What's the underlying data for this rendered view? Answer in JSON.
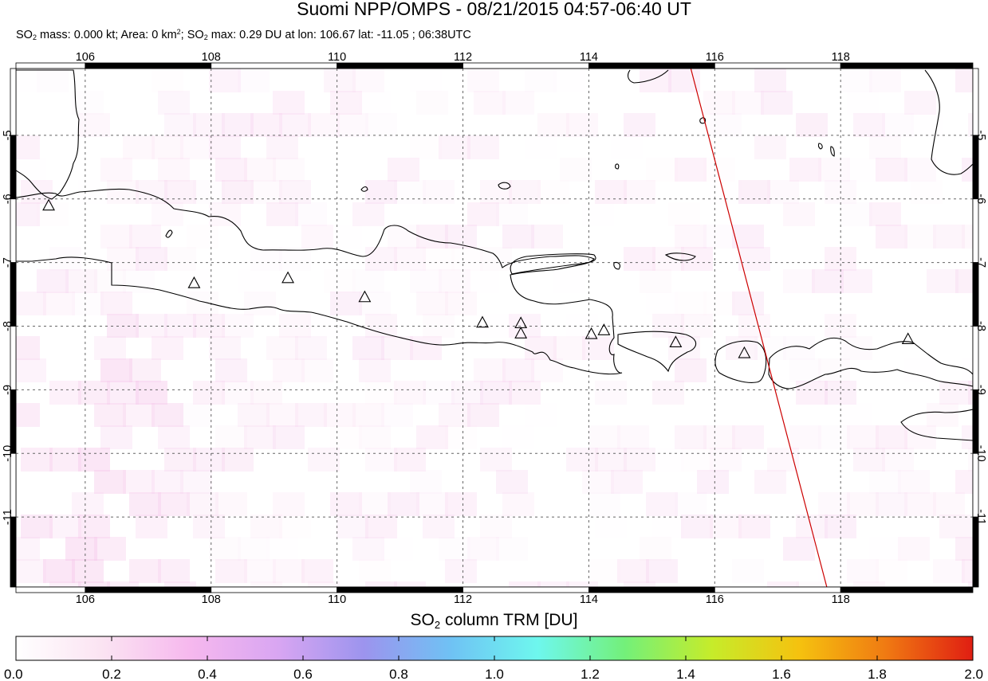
{
  "header": {
    "title": "Suomi NPP/OMPS - 08/21/2015 04:57-06:40 UT",
    "stats_prefix": "SO",
    "stats_sub": "2",
    "stats_part1": " mass: 0.000 kt; Area: 0 km",
    "stats_sup": "2",
    "stats_part2": "; SO",
    "stats_sub2": "2",
    "stats_part3": " max: 0.29 DU at lon: 106.67 lat: -11.05 ; 06:38UTC"
  },
  "map": {
    "lon_range": [
      104.9,
      120.1
    ],
    "lat_range": [
      -12.1,
      -3.95
    ],
    "lon_ticks": [
      "106",
      "108",
      "110",
      "112",
      "114",
      "116",
      "118"
    ],
    "lat_ticks": [
      "-5",
      "-6",
      "-7",
      "-8",
      "-9",
      "-10",
      "-11"
    ],
    "volcanoes": [
      {
        "lon": 105.42,
        "lat": -6.1
      },
      {
        "lon": 107.73,
        "lat": -7.32
      },
      {
        "lon": 109.22,
        "lat": -7.24
      },
      {
        "lon": 110.44,
        "lat": -7.54
      },
      {
        "lon": 112.31,
        "lat": -7.94
      },
      {
        "lon": 112.92,
        "lat": -7.95
      },
      {
        "lon": 112.92,
        "lat": -8.11
      },
      {
        "lon": 114.04,
        "lat": -8.12
      },
      {
        "lon": 114.24,
        "lat": -8.06
      },
      {
        "lon": 115.38,
        "lat": -8.25
      },
      {
        "lon": 116.47,
        "lat": -8.42
      },
      {
        "lon": 119.07,
        "lat": -8.2
      }
    ],
    "orbit_track": [
      [
        115.62,
        -3.95
      ],
      [
        117.78,
        -12.1
      ]
    ],
    "colors": {
      "coast": "#000000",
      "orbit": "#cc0000",
      "grid": "#555555"
    }
  },
  "colorbar": {
    "title_prefix": "SO",
    "title_sub": "2",
    "title_rest": " column TRM [DU]",
    "ticks": [
      "0.0",
      "0.2",
      "0.4",
      "0.6",
      "0.8",
      "1.0",
      "1.2",
      "1.4",
      "1.6",
      "1.8",
      "2.0"
    ],
    "stops": [
      "#ffffff",
      "#fbe3f2",
      "#f6b8ee",
      "#d9a6f2",
      "#9c94ee",
      "#6fc2f4",
      "#6ef7ee",
      "#73f07a",
      "#c6ec2a",
      "#f5c20f",
      "#f07a12",
      "#e01e12"
    ]
  }
}
